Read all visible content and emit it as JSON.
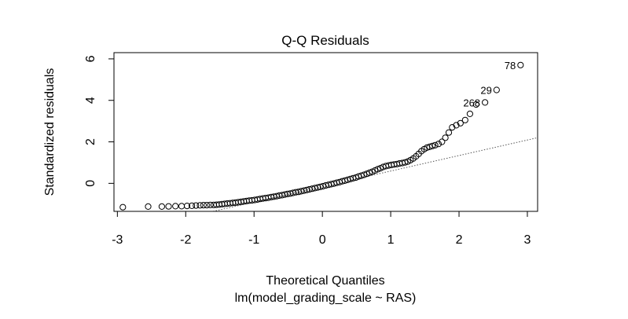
{
  "chart_data": {
    "type": "scatter",
    "title": "Q-Q Residuals",
    "xlabel": "Theoretical Quantiles",
    "ylabel": "Standardized residuals",
    "subtitle": "lm(model_grading_scale ~ RAS)",
    "xlim": [
      -3.05,
      3.15
    ],
    "ylim": [
      -1.35,
      6.3
    ],
    "xticks": [
      -3,
      -2,
      -1,
      0,
      1,
      2,
      3
    ],
    "yticks": [
      0,
      2,
      4,
      6
    ],
    "grid": false,
    "reference_line": {
      "x0": -1.6,
      "y0": -1.35,
      "x1": 3.15,
      "y1": 2.2,
      "style": "dotted"
    },
    "labeled_points": [
      {
        "label": "78",
        "x": 2.9,
        "y": 5.7
      },
      {
        "label": "29",
        "x": 2.55,
        "y": 4.5
      },
      {
        "label": "268",
        "x": 2.38,
        "y": 3.9
      }
    ],
    "points": {
      "x": [
        -2.92,
        -2.55,
        -2.35,
        -2.25,
        -2.15,
        -2.06,
        -1.98,
        -1.91,
        -1.85,
        -1.79,
        -1.74,
        -1.69,
        -1.64,
        -1.59,
        -1.55,
        -1.51,
        -1.47,
        -1.43,
        -1.39,
        -1.35,
        -1.31,
        -1.27,
        -1.23,
        -1.19,
        -1.15,
        -1.11,
        -1.07,
        -1.03,
        -0.99,
        -0.95,
        -0.91,
        -0.87,
        -0.83,
        -0.79,
        -0.75,
        -0.71,
        -0.67,
        -0.63,
        -0.59,
        -0.55,
        -0.51,
        -0.47,
        -0.43,
        -0.39,
        -0.35,
        -0.31,
        -0.27,
        -0.23,
        -0.19,
        -0.15,
        -0.11,
        -0.07,
        -0.03,
        0.01,
        0.05,
        0.09,
        0.13,
        0.17,
        0.21,
        0.25,
        0.29,
        0.33,
        0.37,
        0.41,
        0.45,
        0.49,
        0.53,
        0.57,
        0.61,
        0.65,
        0.69,
        0.73,
        0.77,
        0.81,
        0.85,
        0.89,
        0.93,
        0.97,
        1.01,
        1.05,
        1.09,
        1.13,
        1.17,
        1.21,
        1.25,
        1.29,
        1.33,
        1.37,
        1.41,
        1.45,
        1.49,
        1.53,
        1.57,
        1.61,
        1.65,
        1.7,
        1.75,
        1.8,
        1.85,
        1.9,
        1.96,
        2.02,
        2.09,
        2.16,
        2.25,
        2.38,
        2.55,
        2.9
      ],
      "y": [
        -1.15,
        -1.12,
        -1.12,
        -1.11,
        -1.1,
        -1.1,
        -1.09,
        -1.08,
        -1.07,
        -1.06,
        -1.05,
        -1.05,
        -1.04,
        -1.04,
        -1.03,
        -1.02,
        -1.0,
        -0.99,
        -0.97,
        -0.96,
        -0.94,
        -0.93,
        -0.91,
        -0.89,
        -0.87,
        -0.85,
        -0.83,
        -0.82,
        -0.8,
        -0.78,
        -0.75,
        -0.73,
        -0.71,
        -0.69,
        -0.66,
        -0.64,
        -0.62,
        -0.59,
        -0.57,
        -0.54,
        -0.51,
        -0.49,
        -0.46,
        -0.43,
        -0.41,
        -0.38,
        -0.35,
        -0.32,
        -0.29,
        -0.26,
        -0.23,
        -0.2,
        -0.17,
        -0.14,
        -0.1,
        -0.07,
        -0.04,
        -0.01,
        0.03,
        0.06,
        0.1,
        0.13,
        0.17,
        0.21,
        0.25,
        0.28,
        0.33,
        0.37,
        0.41,
        0.46,
        0.51,
        0.56,
        0.62,
        0.68,
        0.73,
        0.79,
        0.83,
        0.86,
        0.89,
        0.91,
        0.93,
        0.96,
        0.98,
        1.01,
        1.05,
        1.12,
        1.2,
        1.3,
        1.42,
        1.55,
        1.65,
        1.72,
        1.76,
        1.8,
        1.84,
        1.9,
        2.0,
        2.2,
        2.45,
        2.7,
        2.8,
        2.9,
        3.05,
        3.35,
        3.8,
        3.9,
        4.5,
        5.7
      ]
    }
  }
}
